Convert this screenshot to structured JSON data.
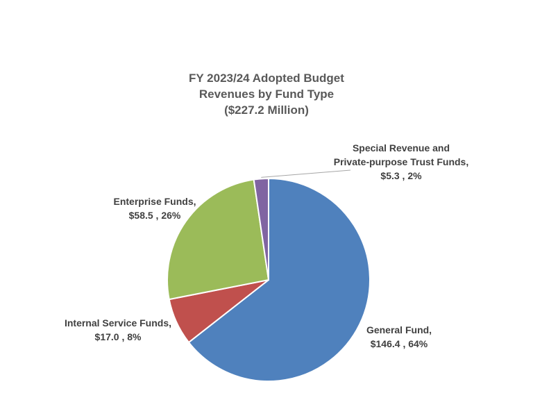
{
  "chart_data": {
    "type": "pie",
    "title_lines": [
      "FY 2023/24 Adopted Budget",
      "Revenues by Fund Type",
      "($227.2 Million)"
    ],
    "start_angle_deg": 0,
    "direction": "clockwise",
    "slices": [
      {
        "label_lines": [
          "General Fund,",
          "$146.4 , 64%"
        ],
        "value": 146.4,
        "percent": 64,
        "color": "#4F81BD"
      },
      {
        "label_lines": [
          "Internal Service Funds,",
          "$17.0 , 8%"
        ],
        "value": 17.0,
        "percent": 8,
        "color": "#C0504D"
      },
      {
        "label_lines": [
          "Enterprise Funds,",
          "$58.5 , 26%"
        ],
        "value": 58.5,
        "percent": 26,
        "color": "#9BBB59"
      },
      {
        "label_lines": [
          "Special Revenue and",
          "Private-purpose Trust Funds,",
          "$5.3 , 2%"
        ],
        "value": 5.3,
        "percent": 2,
        "color": "#8064A2"
      }
    ]
  }
}
